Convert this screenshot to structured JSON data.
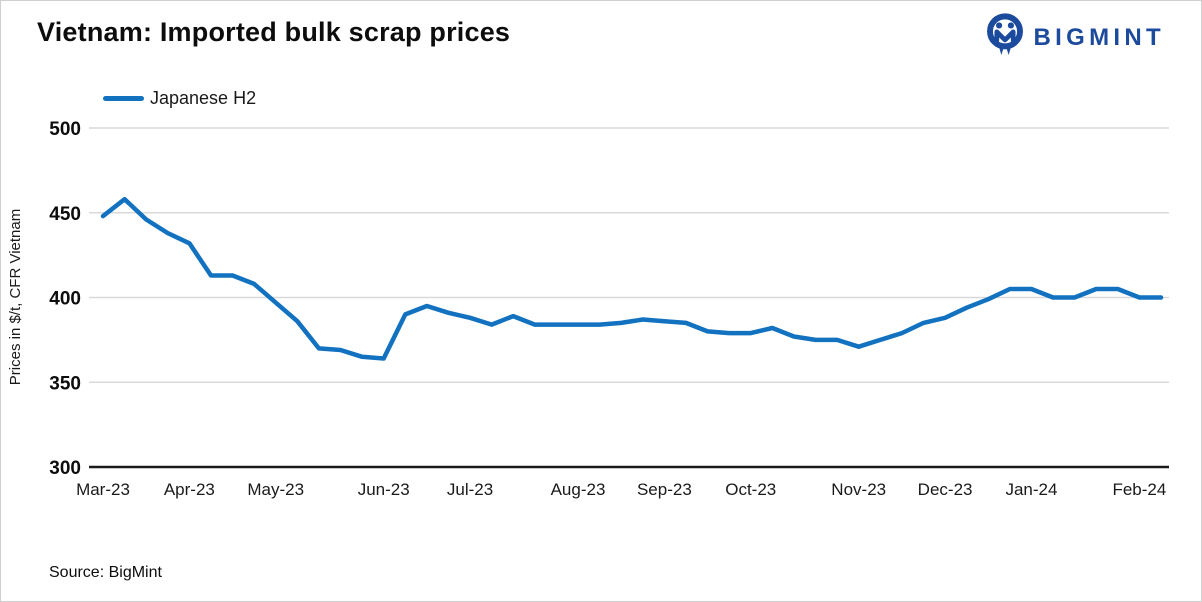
{
  "page": {
    "title": "Vietnam: Imported bulk scrap prices",
    "source": "Source: BigMint"
  },
  "logo": {
    "text": "BIGMINT",
    "icon": "bigmint-logo-icon",
    "color": "#1c4a9c"
  },
  "legend": {
    "label": "Japanese H2",
    "color": "#1272c0"
  },
  "chart_data": {
    "type": "line",
    "title": "Vietnam: Imported bulk scrap prices",
    "xlabel": "",
    "ylabel": "Prices in $/t, CFR Vietnam",
    "ylim": [
      300,
      500
    ],
    "yticks": [
      300,
      350,
      400,
      450,
      500
    ],
    "grid": true,
    "legend_position": "top-left",
    "frequency": "weekly",
    "x_tick_labels": [
      "Mar-23",
      "Apr-23",
      "May-23",
      "Jun-23",
      "Jul-23",
      "Aug-23",
      "Sep-23",
      "Oct-23",
      "Nov-23",
      "Dec-23",
      "Jan-24",
      "Feb-24"
    ],
    "x_tick_indices": [
      0,
      4,
      8,
      13,
      17,
      22,
      26,
      30,
      35,
      39,
      43,
      48
    ],
    "series": [
      {
        "name": "Japanese H2",
        "color": "#1272c0",
        "values": [
          448,
          458,
          446,
          438,
          432,
          413,
          413,
          408,
          397,
          386,
          370,
          369,
          365,
          364,
          390,
          395,
          391,
          388,
          384,
          389,
          384,
          384,
          384,
          384,
          385,
          387,
          386,
          385,
          380,
          379,
          379,
          382,
          377,
          375,
          375,
          371,
          375,
          379,
          385,
          388,
          394,
          399,
          405,
          405,
          400,
          400,
          405,
          405,
          400,
          400
        ]
      }
    ],
    "axis_color": "#1a1a1a",
    "gridline_color": "#d9d9d9"
  },
  "geometry_note": "values shown in $/t on weekly cadence Mar-2023 to Feb-2024"
}
